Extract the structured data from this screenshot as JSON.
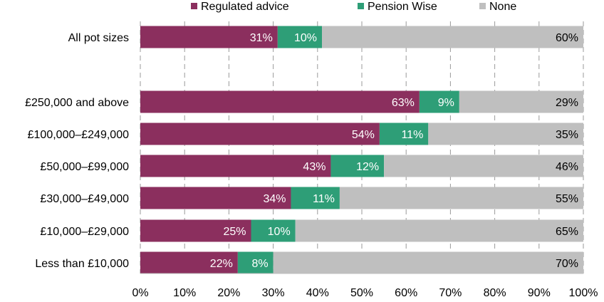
{
  "chart_data": {
    "type": "bar",
    "orientation": "horizontal",
    "stacked": true,
    "categories": [
      "All pot sizes",
      "",
      "£250,000 and above",
      "£100,000–£249,000",
      "£50,000–£99,000",
      "£30,000–£49,000",
      "£10,000–£29,000",
      "Less than £10,000"
    ],
    "series": [
      {
        "name": "Regulated advice",
        "color": "#8B2F5E",
        "values": [
          31,
          null,
          63,
          54,
          43,
          34,
          25,
          22
        ],
        "labels": [
          "31%",
          "",
          "63%",
          "54%",
          "43%",
          "34%",
          "25%",
          "22%"
        ]
      },
      {
        "name": "Pension Wise",
        "color": "#2E9E77",
        "values": [
          10,
          null,
          9,
          11,
          12,
          11,
          10,
          8
        ],
        "labels": [
          "10%",
          "",
          "9%",
          "11%",
          "12%",
          "11%",
          "10%",
          "8%"
        ]
      },
      {
        "name": "None",
        "color": "#BFBFBF",
        "values": [
          60,
          null,
          29,
          35,
          46,
          55,
          65,
          70
        ],
        "labels": [
          "60%",
          "",
          "29%",
          "35%",
          "46%",
          "55%",
          "65%",
          "70%"
        ]
      }
    ],
    "xlim": [
      0,
      100
    ],
    "xticks": [
      "0%",
      "10%",
      "20%",
      "30%",
      "40%",
      "50%",
      "60%",
      "70%",
      "80%",
      "90%",
      "100%"
    ],
    "grid": "vertical dashed",
    "legend_position": "top"
  }
}
